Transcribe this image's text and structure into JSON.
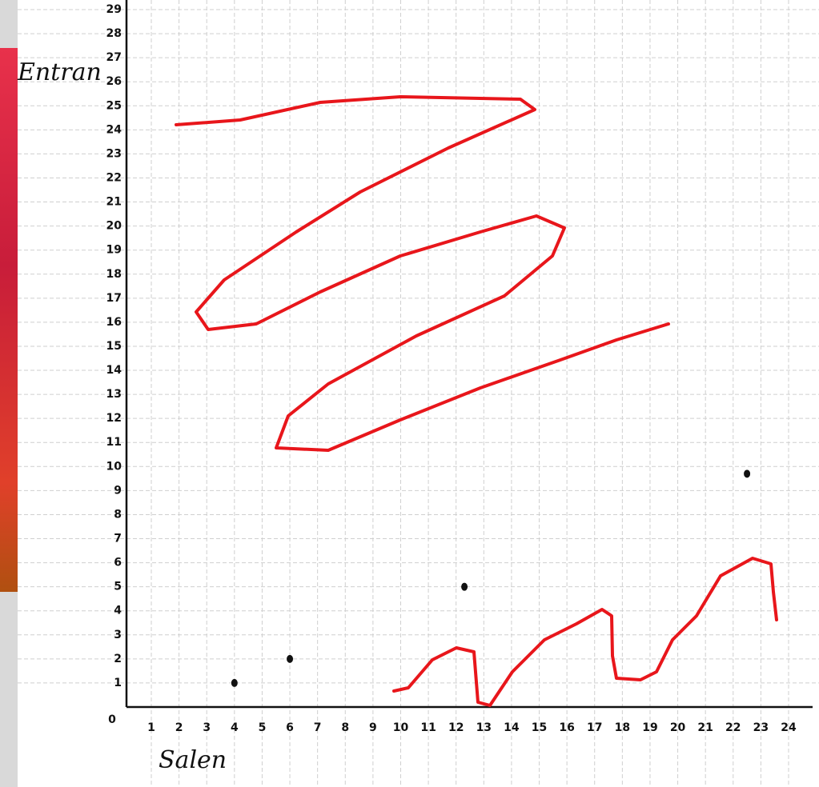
{
  "chart_data": {
    "type": "scatter",
    "x_label": "Salen",
    "y_label": "Entran",
    "x": [
      4,
      6,
      12.3,
      22.5
    ],
    "values": [
      1,
      2,
      5,
      9.7
    ],
    "color": "#111111",
    "xlim": [
      0,
      24
    ],
    "xticks": [
      0,
      1,
      2,
      3,
      4,
      5,
      6,
      7,
      8,
      9,
      10,
      11,
      12,
      13,
      14,
      15,
      16,
      17,
      18,
      19,
      20,
      21,
      22,
      23,
      24
    ],
    "ylim": [
      0,
      29
    ],
    "yticks": [
      1,
      2,
      3,
      4,
      5,
      6,
      7,
      8,
      9,
      10,
      11,
      12,
      13,
      14,
      15,
      16,
      17,
      18,
      19,
      20,
      21,
      22,
      23,
      24,
      25,
      26,
      27,
      28,
      29
    ],
    "grid": true
  }
}
